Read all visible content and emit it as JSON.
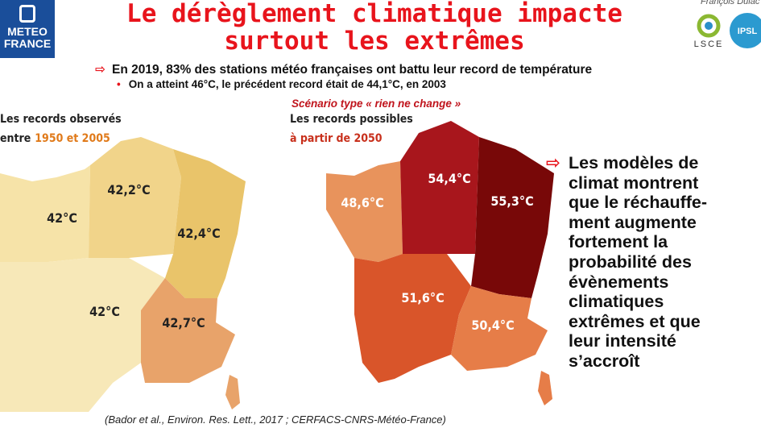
{
  "logo": {
    "line1": "METEO",
    "line2": "FRANCE"
  },
  "author": "François Dulac",
  "partners": {
    "lsce": "LSCE",
    "ipsl": "IPSL"
  },
  "title": {
    "line1": "Le dérèglement climatique impacte",
    "line2": "surtout les extrêmes"
  },
  "bullet": "En 2019, 83% des stations météo françaises ont battu leur record de température",
  "sub_bullet": "On a atteint 46°C, le précédent record était de 44,1°C, en 2003",
  "scenario": "Scénario type « rien ne change »",
  "left_map": {
    "caption1": "Les records observés",
    "caption2a": "entre",
    "caption2b": "1950 et 2005",
    "regions": {
      "nw": "42°C",
      "n": "42,2°C",
      "ne": "42,4°C",
      "sw": "42°C",
      "se": "42,7°C"
    }
  },
  "right_map": {
    "caption1": "Les records possibles",
    "caption2": "à partir de 2050",
    "regions": {
      "nw": "48,6°C",
      "n": "54,4°C",
      "ne": "55,3°C",
      "sw": "51,6°C",
      "se": "50,4°C"
    }
  },
  "conclusion": [
    "Les modèles de",
    "climat montrent",
    "que le réchauffe-",
    "ment augmente",
    "fortement la",
    "probabilité des",
    "évènements",
    "climatiques",
    "extrêmes et que",
    "leur intensité",
    "s’accroît"
  ],
  "citation": "(Bador et al., Environ. Res. Lett., 2017 ; CERFACS-CNRS-Météo-France)"
}
